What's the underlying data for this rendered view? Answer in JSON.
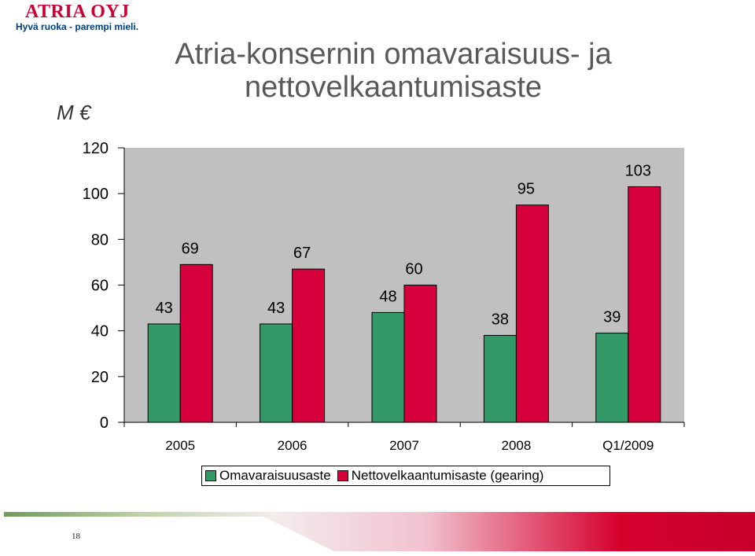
{
  "logo": {
    "name": "ATRIA OYJ",
    "tagline": "Hyvä ruoka - parempi mieli."
  },
  "slide": {
    "title": "Atria-konsernin omavaraisuus- ja nettovelkaantumisaste",
    "unit": "M €",
    "page_number": "18"
  },
  "colors": {
    "series1": "#339966",
    "series2": "#d6003d",
    "plot_bg": "#c0c0c0",
    "title": "#595959"
  },
  "chart_data": {
    "type": "bar",
    "title": "Atria-konsernin omavaraisuus- ja nettovelkaantumisaste",
    "ylabel": "M €",
    "xlabel": "",
    "categories": [
      "2005",
      "2006",
      "2007",
      "2008",
      "Q1/2009"
    ],
    "series": [
      {
        "name": "Omavaraisuusaste",
        "values": [
          43,
          43,
          48,
          38,
          39
        ],
        "color": "#339966"
      },
      {
        "name": "Nettovelkaantumisaste (gearing)",
        "values": [
          69,
          67,
          60,
          95,
          103
        ],
        "color": "#d6003d"
      }
    ],
    "ylim": [
      0,
      120
    ],
    "yticks": [
      0,
      20,
      40,
      60,
      80,
      100,
      120
    ],
    "grid": false,
    "legend": "bottom"
  }
}
